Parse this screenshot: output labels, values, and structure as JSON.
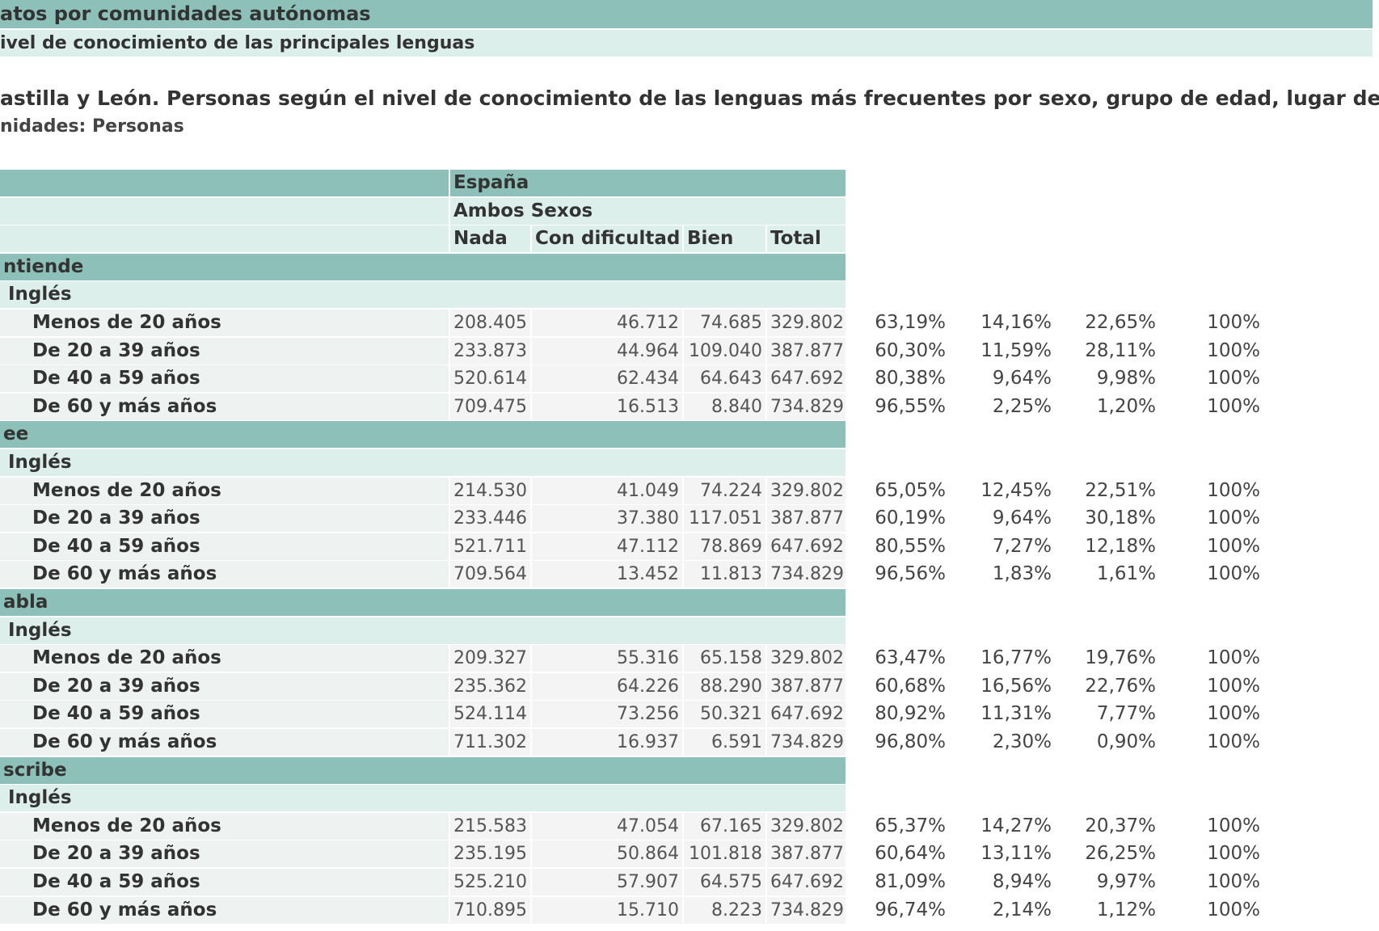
{
  "header": {
    "bar1": "atos por comunidades autónomas",
    "bar2": "ivel de conocimiento de las principales lenguas"
  },
  "title": "astilla y León. Personas según el nivel de conocimiento de las lenguas más frecuentes por sexo, grupo de edad, lugar de",
  "units": "nidades: Personas",
  "table": {
    "col_headers": {
      "country": "España",
      "sex": "Ambos Sexos",
      "levels": [
        "Nada",
        "Con dificultad",
        "Bien",
        "Total"
      ]
    },
    "sections": [
      {
        "name": "ntiende",
        "language": "Inglés",
        "rows": [
          {
            "label": "Menos de 20 años",
            "values": [
              "208.405",
              "46.712",
              "74.685",
              "329.802"
            ],
            "percents": [
              "63,19%",
              "14,16%",
              "22,65%",
              "100%"
            ]
          },
          {
            "label": "De 20 a 39 años",
            "values": [
              "233.873",
              "44.964",
              "109.040",
              "387.877"
            ],
            "percents": [
              "60,30%",
              "11,59%",
              "28,11%",
              "100%"
            ]
          },
          {
            "label": "De 40 a 59 años",
            "values": [
              "520.614",
              "62.434",
              "64.643",
              "647.692"
            ],
            "percents": [
              "80,38%",
              "9,64%",
              "9,98%",
              "100%"
            ]
          },
          {
            "label": "De 60 y más años",
            "values": [
              "709.475",
              "16.513",
              "8.840",
              "734.829"
            ],
            "percents": [
              "96,55%",
              "2,25%",
              "1,20%",
              "100%"
            ]
          }
        ]
      },
      {
        "name": "ee",
        "language": "Inglés",
        "rows": [
          {
            "label": "Menos de 20 años",
            "values": [
              "214.530",
              "41.049",
              "74.224",
              "329.802"
            ],
            "percents": [
              "65,05%",
              "12,45%",
              "22,51%",
              "100%"
            ]
          },
          {
            "label": "De 20 a 39 años",
            "values": [
              "233.446",
              "37.380",
              "117.051",
              "387.877"
            ],
            "percents": [
              "60,19%",
              "9,64%",
              "30,18%",
              "100%"
            ]
          },
          {
            "label": "De 40 a 59 años",
            "values": [
              "521.711",
              "47.112",
              "78.869",
              "647.692"
            ],
            "percents": [
              "80,55%",
              "7,27%",
              "12,18%",
              "100%"
            ]
          },
          {
            "label": "De 60 y más años",
            "values": [
              "709.564",
              "13.452",
              "11.813",
              "734.829"
            ],
            "percents": [
              "96,56%",
              "1,83%",
              "1,61%",
              "100%"
            ]
          }
        ]
      },
      {
        "name": "abla",
        "language": "Inglés",
        "rows": [
          {
            "label": "Menos de 20 años",
            "values": [
              "209.327",
              "55.316",
              "65.158",
              "329.802"
            ],
            "percents": [
              "63,47%",
              "16,77%",
              "19,76%",
              "100%"
            ]
          },
          {
            "label": "De 20 a 39 años",
            "values": [
              "235.362",
              "64.226",
              "88.290",
              "387.877"
            ],
            "percents": [
              "60,68%",
              "16,56%",
              "22,76%",
              "100%"
            ]
          },
          {
            "label": "De 40 a 59 años",
            "values": [
              "524.114",
              "73.256",
              "50.321",
              "647.692"
            ],
            "percents": [
              "80,92%",
              "11,31%",
              "7,77%",
              "100%"
            ]
          },
          {
            "label": "De 60 y más años",
            "values": [
              "711.302",
              "16.937",
              "6.591",
              "734.829"
            ],
            "percents": [
              "96,80%",
              "2,30%",
              "0,90%",
              "100%"
            ]
          }
        ]
      },
      {
        "name": "scribe",
        "language": "Inglés",
        "rows": [
          {
            "label": "Menos de 20 años",
            "values": [
              "215.583",
              "47.054",
              "67.165",
              "329.802"
            ],
            "percents": [
              "65,37%",
              "14,27%",
              "20,37%",
              "100%"
            ]
          },
          {
            "label": "De 20 a 39 años",
            "values": [
              "235.195",
              "50.864",
              "101.818",
              "387.877"
            ],
            "percents": [
              "60,64%",
              "13,11%",
              "26,25%",
              "100%"
            ]
          },
          {
            "label": "De 40 a 59 años",
            "values": [
              "525.210",
              "57.907",
              "64.575",
              "647.692"
            ],
            "percents": [
              "81,09%",
              "8,94%",
              "9,97%",
              "100%"
            ]
          },
          {
            "label": "De 60 y más años",
            "values": [
              "710.895",
              "15.710",
              "8.223",
              "734.829"
            ],
            "percents": [
              "96,74%",
              "2,14%",
              "1,12%",
              "100%"
            ]
          }
        ]
      }
    ]
  }
}
